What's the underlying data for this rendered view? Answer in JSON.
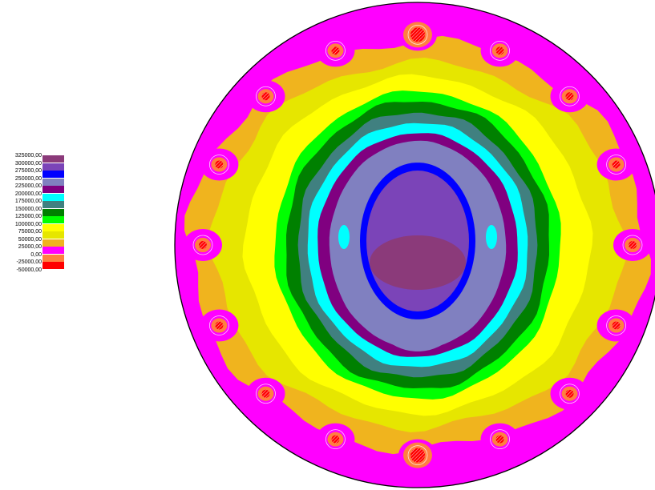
{
  "legend": {
    "entries": [
      {
        "label": "325000,00",
        "color": "#8b3a7a"
      },
      {
        "label": "300000,00",
        "color": "#7b44b8"
      },
      {
        "label": "275000,00",
        "color": "#0000ff"
      },
      {
        "label": "250000,00",
        "color": "#8080c0"
      },
      {
        "label": "225000,00",
        "color": "#800080"
      },
      {
        "label": "200000,00",
        "color": "#00ffff"
      },
      {
        "label": "175000,00",
        "color": "#408080"
      },
      {
        "label": "150000,00",
        "color": "#008000"
      },
      {
        "label": "125000,00",
        "color": "#00ff00"
      },
      {
        "label": "100000,00",
        "color": "#ffff00"
      },
      {
        "label": "75000,00",
        "color": "#e6e600"
      },
      {
        "label": "50000,00",
        "color": "#f0b41e"
      },
      {
        "label": "25000,00",
        "color": "#ff00ff"
      },
      {
        "label": "0,00",
        "color": "#ff8040"
      },
      {
        "label": "-25000,00",
        "color": "#ff0000"
      },
      {
        "label": "-50000,00",
        "color": ""
      }
    ]
  },
  "contour": {
    "bands": [
      {
        "name": "25000,00",
        "color": "#ff00ff"
      },
      {
        "name": "50000,00",
        "color": "#f0b41e"
      },
      {
        "name": "75000,00",
        "color": "#e6e600"
      },
      {
        "name": "100000,00",
        "color": "#ffff00"
      },
      {
        "name": "125000,00",
        "color": "#00ff00"
      },
      {
        "name": "150000,00",
        "color": "#008000"
      },
      {
        "name": "175000,00",
        "color": "#408080"
      },
      {
        "name": "200000,00",
        "color": "#00ffff"
      },
      {
        "name": "225000,00",
        "color": "#800080"
      },
      {
        "name": "250000,00",
        "color": "#8080c0"
      },
      {
        "name": "275000,00",
        "color": "#0000ff"
      },
      {
        "name": "300000,00",
        "color": "#7b44b8"
      },
      {
        "name": "325000,00",
        "color": "#8b3a7a"
      }
    ],
    "support_count": 16
  }
}
